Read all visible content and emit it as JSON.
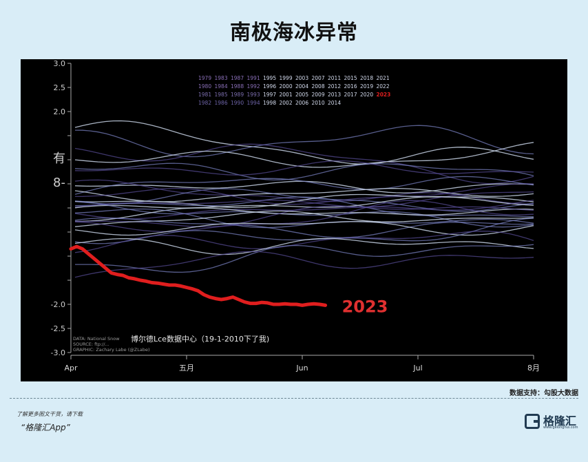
{
  "page": {
    "title": "南极海冰异常",
    "source": "数据支持：勾股大数据",
    "promo_text": "了解更多图文干货，请下载",
    "promo_app": "“格隆汇App”",
    "logo_text": "格隆汇",
    "logo_sub": "www.gelonghui.com"
  },
  "chart_data": {
    "type": "line",
    "title": "",
    "xlabel": "",
    "ylabel": "",
    "ylim": [
      -3.0,
      3.0
    ],
    "y_ticks": [
      3.0,
      2.5,
      2.0,
      1.5,
      1.0,
      0.5,
      0,
      -0.5,
      -1.0,
      -1.5,
      -2.0,
      -2.5,
      -3.0
    ],
    "y_tick_labels": [
      "3.0",
      "2.5",
      "2.0",
      "",
      "有",
      "8-",
      "",
      "",
      "",
      "",
      "-2.0",
      "-2.5",
      "-3.0"
    ],
    "x_ticks": [
      "Apr",
      "五月",
      "Jun",
      "Jul",
      "8月"
    ],
    "grid": false,
    "highlight_label": "2023",
    "overlay_note": "博尔德Lce数据中心（19-1-2010下了我)",
    "credits": [
      "DATA: National Snow",
      "SOURCE: ftp://...",
      "GRAPHIC: Zachary Labe (@ZLabe)"
    ],
    "legend_rows": [
      "1979 1983 1987 1991 1995 1999 2003 2007 2011 2015 2018 2021",
      "1980 1984 1988 1992 1996 2000 2004 2008 2012 2016 2019 2022",
      "1981 1985 1989 1993 1997 2001 2005 2009 2013 2017 2020 2023",
      "1982 1986 1990 1994 1998 2002 2006 2010 2014"
    ],
    "series_2023": {
      "name": "2023",
      "x": [
        0,
        0.05,
        0.1,
        0.15,
        0.2,
        0.25,
        0.3,
        0.35,
        0.4,
        0.45,
        0.5,
        0.55,
        0.6,
        0.65,
        0.7,
        0.75,
        0.8,
        0.85,
        0.9,
        0.95,
        1.0,
        1.05,
        1.1,
        1.15,
        1.2,
        1.25,
        1.3,
        1.35,
        1.4,
        1.45,
        1.5,
        1.55,
        1.6,
        1.65,
        1.7,
        1.75,
        1.8,
        1.85,
        1.9,
        1.95,
        2.0,
        2.05,
        2.1,
        2.15,
        2.2
      ],
      "y": [
        -0.85,
        -0.8,
        -0.85,
        -0.95,
        -1.05,
        -1.15,
        -1.25,
        -1.35,
        -1.38,
        -1.4,
        -1.45,
        -1.47,
        -1.5,
        -1.52,
        -1.55,
        -1.56,
        -1.58,
        -1.6,
        -1.6,
        -1.62,
        -1.65,
        -1.68,
        -1.72,
        -1.8,
        -1.85,
        -1.88,
        -1.9,
        -1.88,
        -1.85,
        -1.9,
        -1.95,
        -1.98,
        -1.98,
        -1.96,
        -1.97,
        -2.0,
        -2.0,
        -1.99,
        -2.0,
        -2.0,
        -2.02,
        -2.0,
        -1.99,
        -2.0,
        -2.02
      ]
    },
    "background_series": [
      {
        "start": 1.55,
        "end": 1.0,
        "amp": 0.3
      },
      {
        "start": 1.45,
        "end": 1.3,
        "amp": 0.35
      },
      {
        "start": 1.2,
        "end": 0.8,
        "amp": 0.3
      },
      {
        "start": 1.0,
        "end": 1.1,
        "amp": 0.25
      },
      {
        "start": 0.9,
        "end": 0.6,
        "amp": 0.3
      },
      {
        "start": 0.7,
        "end": 0.9,
        "amp": 0.25
      },
      {
        "start": 0.55,
        "end": 0.4,
        "amp": 0.2
      },
      {
        "start": 0.45,
        "end": 0.5,
        "amp": 0.25
      },
      {
        "start": 0.35,
        "end": 0.2,
        "amp": 0.2
      },
      {
        "start": 0.3,
        "end": 0.3,
        "amp": 0.15
      },
      {
        "start": 0.25,
        "end": 0.05,
        "amp": 0.2
      },
      {
        "start": 0.2,
        "end": 0.35,
        "amp": 0.2
      },
      {
        "start": 0.15,
        "end": 0.15,
        "amp": 0.15
      },
      {
        "start": 0.1,
        "end": -0.05,
        "amp": 0.2
      },
      {
        "start": 0.05,
        "end": 0.25,
        "amp": 0.15
      },
      {
        "start": 0.0,
        "end": 0.1,
        "amp": 0.15
      },
      {
        "start": -0.05,
        "end": -0.2,
        "amp": 0.2
      },
      {
        "start": -0.1,
        "end": 0.05,
        "amp": 0.15
      },
      {
        "start": -0.15,
        "end": -0.1,
        "amp": 0.15
      },
      {
        "start": -0.2,
        "end": -0.3,
        "amp": 0.2
      },
      {
        "start": -0.25,
        "end": 0.0,
        "amp": 0.2
      },
      {
        "start": -0.3,
        "end": -0.15,
        "amp": 0.15
      },
      {
        "start": -0.35,
        "end": -0.4,
        "amp": 0.2
      },
      {
        "start": -0.4,
        "end": -0.05,
        "amp": 0.25
      },
      {
        "start": -0.5,
        "end": -0.3,
        "amp": 0.2
      },
      {
        "start": -0.6,
        "end": -0.5,
        "amp": 0.25
      },
      {
        "start": -0.75,
        "end": -0.7,
        "amp": 0.3
      },
      {
        "start": -0.9,
        "end": -0.6,
        "amp": 0.3
      },
      {
        "start": -1.1,
        "end": -0.8,
        "amp": 0.35
      },
      {
        "start": -1.3,
        "end": -1.0,
        "amp": 0.3
      }
    ],
    "colors": {
      "highlight": "#e01e1e",
      "lines_light": "#c8d4e6",
      "lines_mid": "#7d86c9",
      "lines_dark": "#5a4f9a",
      "axis": "#aaaaaa",
      "label": "#e03030"
    }
  }
}
